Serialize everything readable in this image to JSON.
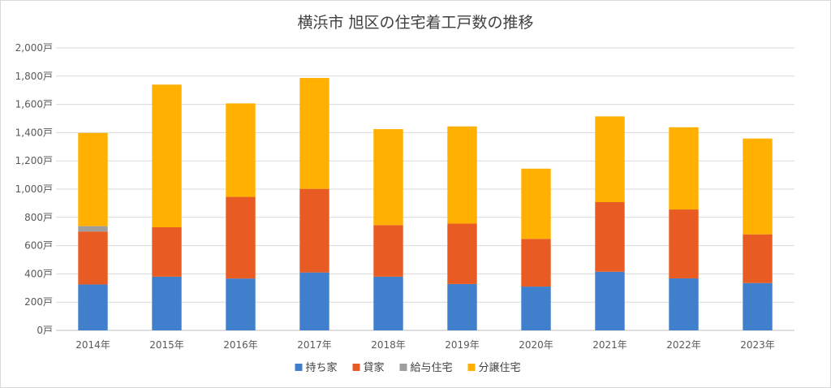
{
  "chart_data": {
    "type": "bar",
    "stacked": true,
    "title": "横浜市 旭区の住宅着工戸数の推移",
    "xlabel": "",
    "ylabel": "",
    "categories": [
      "2014年",
      "2015年",
      "2016年",
      "2017年",
      "2018年",
      "2019年",
      "2020年",
      "2021年",
      "2022年",
      "2023年"
    ],
    "series": [
      {
        "name": "持ち家",
        "color": "#3f7fcb",
        "values": [
          325,
          380,
          367,
          410,
          380,
          328,
          310,
          415,
          368,
          335
        ]
      },
      {
        "name": "貸家",
        "color": "#e85c23",
        "values": [
          375,
          350,
          578,
          592,
          365,
          428,
          338,
          493,
          488,
          345
        ]
      },
      {
        "name": "給与住宅",
        "color": "#9e9e9e",
        "values": [
          38,
          0,
          0,
          0,
          0,
          0,
          0,
          0,
          0,
          0
        ]
      },
      {
        "name": "分譲住宅",
        "color": "#ffb000",
        "values": [
          660,
          1010,
          662,
          785,
          680,
          688,
          497,
          607,
          582,
          678
        ]
      }
    ],
    "yticks": [
      "0戸",
      "200戸",
      "400戸",
      "600戸",
      "800戸",
      "1,000戸",
      "1,200戸",
      "1,400戸",
      "1,600戸",
      "1,800戸",
      "2,000戸"
    ],
    "ylim": [
      0,
      2000
    ],
    "ystep": 200,
    "grid": true,
    "legend": "bottom"
  }
}
